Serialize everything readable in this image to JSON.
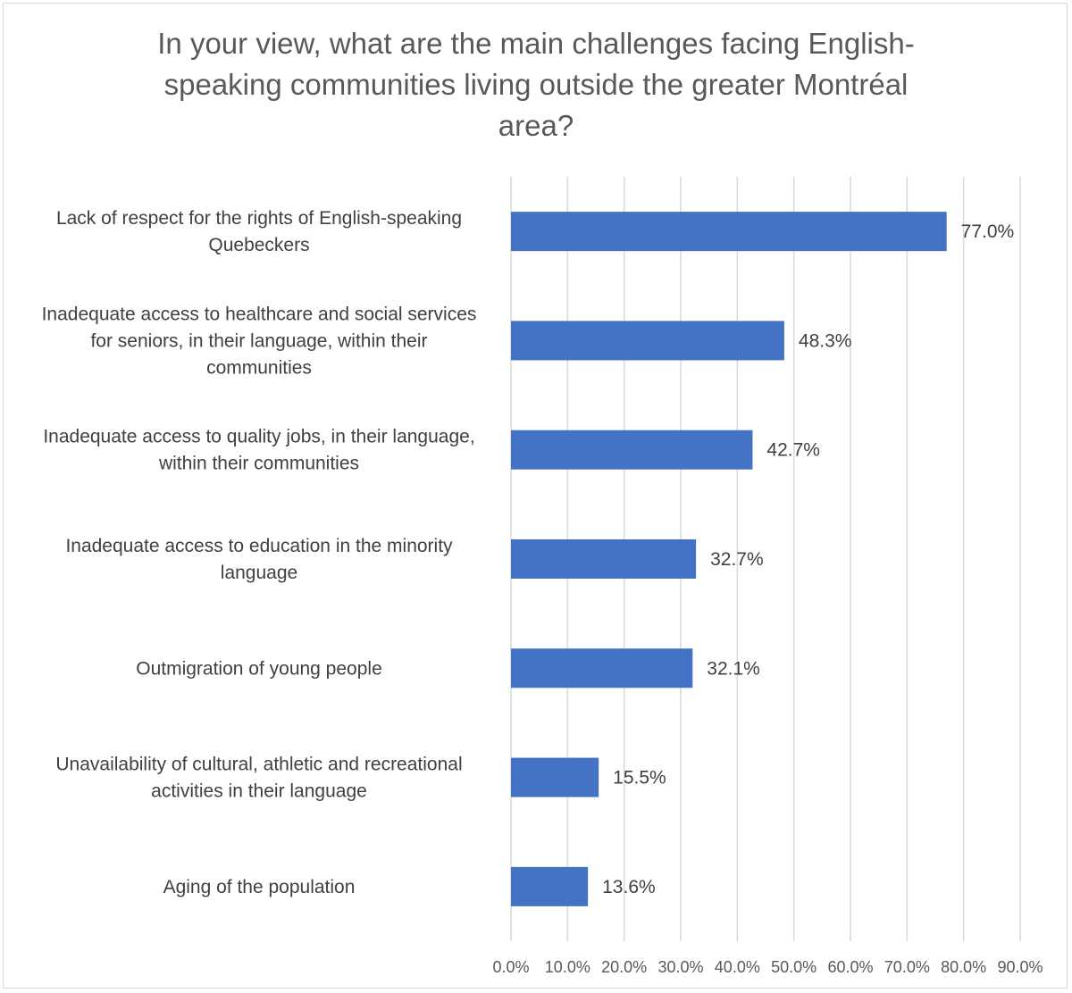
{
  "chart_data": {
    "type": "bar",
    "orientation": "horizontal",
    "title": "In your view, what are the main challenges facing English-speaking communities living outside the greater Montréal area?",
    "title_lines": [
      "In your view, what are the main challenges facing English-",
      "speaking communities living outside the greater Montréal",
      "area?"
    ],
    "categories": [
      [
        "Lack of respect for the rights of English-speaking",
        "Quebeckers"
      ],
      [
        "Inadequate access to healthcare and social services",
        "for seniors, in their language, within their",
        "communities"
      ],
      [
        "Inadequate access to quality jobs, in their language,",
        "within their communities"
      ],
      [
        "Inadequate access to education in the minority",
        "language"
      ],
      [
        "Outmigration of young people"
      ],
      [
        "Unavailability of cultural, athletic and recreational",
        "activities in their language"
      ],
      [
        "Aging of the population"
      ]
    ],
    "values": [
      77.0,
      48.3,
      42.7,
      32.7,
      32.1,
      15.5,
      13.6
    ],
    "value_labels": [
      "77.0%",
      "48.3%",
      "42.7%",
      "32.7%",
      "32.1%",
      "15.5%",
      "13.6%"
    ],
    "xlim": [
      0,
      90
    ],
    "x_ticks": [
      0,
      10,
      20,
      30,
      40,
      50,
      60,
      70,
      80,
      90
    ],
    "x_tick_labels": [
      "0.0%",
      "10.0%",
      "20.0%",
      "30.0%",
      "40.0%",
      "50.0%",
      "60.0%",
      "70.0%",
      "80.0%",
      "90.0%"
    ],
    "xlabel": "",
    "ylabel": "",
    "grid": "vertical",
    "legend": "none",
    "bar_color": "#4472c4",
    "grid_color": "#d9d9d9"
  }
}
